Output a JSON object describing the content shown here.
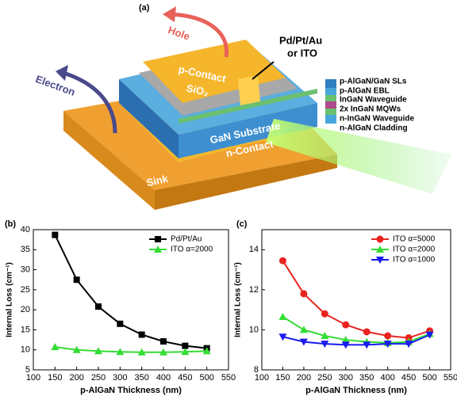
{
  "figure": {
    "panel_labels": [
      "(a)",
      "(b)",
      "(c)"
    ]
  },
  "panel_a": {
    "hole": "Hole",
    "electron": "Electron",
    "metal": "Pd/Pt/Au",
    "metal_alt": "or ITO",
    "p_contact": "p-Contact",
    "sio2": "SiO₂",
    "substrate": "GaN Substrate",
    "n_contact": "n-Contact",
    "sink": "Sink",
    "layers": [
      "p-AlGaN/GaN SLs",
      "p-AlGaN EBL",
      "InGaN Waveguide",
      "2x InGaN MQWs",
      "n-InGaN Waveguide",
      "n-AlGaN Cladding"
    ]
  },
  "chart_data": [
    {
      "type": "line",
      "xlabel": "p-AlGaN Thickness (nm)",
      "ylabel": "Internal Loss (cm⁻¹)",
      "x": [
        150,
        200,
        250,
        300,
        350,
        400,
        450,
        500
      ],
      "xlim": [
        100,
        550
      ],
      "xticks": [
        100,
        150,
        200,
        250,
        300,
        350,
        400,
        450,
        500,
        550
      ],
      "ylim": [
        5,
        40
      ],
      "yticks": [
        5,
        10,
        15,
        20,
        25,
        30,
        35,
        40
      ],
      "legend": "top-right",
      "series": [
        {
          "name": "Pd/Pt/Au",
          "color": "#000000",
          "marker": "square",
          "values": [
            38.7,
            27.5,
            20.8,
            16.5,
            13.8,
            12.1,
            11.0,
            10.4
          ]
        },
        {
          "name": "ITO α=2000",
          "color": "#33dd33",
          "marker": "triangle",
          "values": [
            10.7,
            10.0,
            9.7,
            9.5,
            9.4,
            9.4,
            9.5,
            9.7
          ]
        }
      ]
    },
    {
      "type": "line",
      "xlabel": "p-AlGaN Thickness (nm)",
      "ylabel": "Internal Loss (cm⁻¹)",
      "x": [
        150,
        200,
        250,
        300,
        350,
        400,
        450,
        500
      ],
      "xlim": [
        100,
        550
      ],
      "xticks": [
        100,
        150,
        200,
        250,
        300,
        350,
        400,
        450,
        500,
        550
      ],
      "ylim": [
        8,
        15
      ],
      "yticks": [
        8,
        10,
        12,
        14
      ],
      "legend": "top-right",
      "series": [
        {
          "name": "ITO α=5000",
          "color": "#e8231f",
          "marker": "circle",
          "values": [
            13.45,
            11.8,
            10.8,
            10.25,
            9.9,
            9.7,
            9.6,
            9.95
          ]
        },
        {
          "name": "ITO α=2000",
          "color": "#33dd33",
          "marker": "triangle",
          "values": [
            10.65,
            10.0,
            9.7,
            9.5,
            9.4,
            9.35,
            9.4,
            9.8
          ]
        },
        {
          "name": "ITO α=1000",
          "color": "#1a1aef",
          "marker": "triangle-down",
          "values": [
            9.65,
            9.4,
            9.3,
            9.25,
            9.25,
            9.3,
            9.3,
            9.75
          ]
        }
      ]
    }
  ]
}
